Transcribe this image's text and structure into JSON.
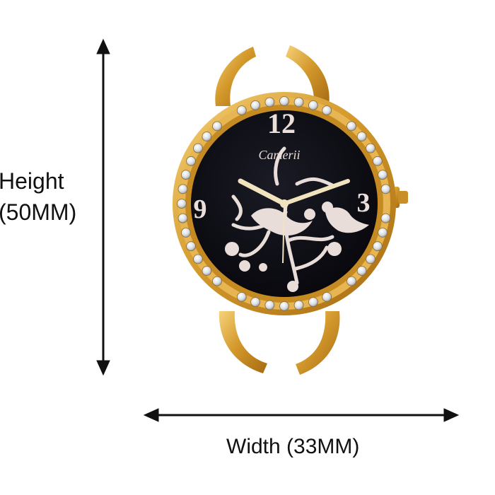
{
  "product": {
    "brand": "Camerii"
  },
  "dimensions": {
    "height_line1": "Height",
    "height_line2": "(50MM)",
    "width": "Width (33MM)"
  },
  "dial": {
    "numerals": {
      "twelve": "12",
      "three": "3",
      "nine": "9"
    }
  },
  "colors": {
    "gold": "#d9a33a",
    "dial": "#0d0d14",
    "motif": "#e8ddd8",
    "arrow": "#111111"
  }
}
